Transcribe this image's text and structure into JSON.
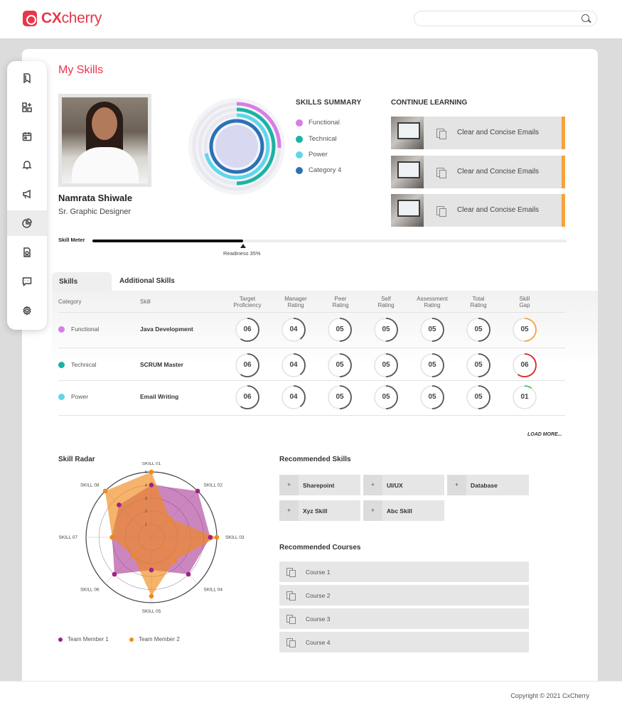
{
  "brand": {
    "name_bold": "CX",
    "name_rest": "cherry"
  },
  "search": {
    "placeholder": ""
  },
  "page": {
    "title": "My Skills"
  },
  "profile": {
    "name": "Namrata Shiwale",
    "role": "Sr. Graphic Designer"
  },
  "skills_summary": {
    "title": "SKILLS SUMMARY",
    "items": [
      {
        "label": "Functional",
        "color": "#d77ee6"
      },
      {
        "label": "Technical",
        "color": "#1bb3a3"
      },
      {
        "label": "Power",
        "color": "#5fd6ea"
      },
      {
        "label": "Category 4",
        "color": "#2a72b5"
      }
    ]
  },
  "continue_learning": {
    "title": "CONTINUE LEARNING",
    "items": [
      {
        "label": "Clear and Concise Emails"
      },
      {
        "label": "Clear and Concise Emails"
      },
      {
        "label": "Clear and Concise Emails"
      }
    ]
  },
  "skill_meter": {
    "label": "Skill Meter",
    "readiness_text": "Readiness 35%",
    "readiness": 0.35
  },
  "tabs": {
    "skills": "Skills",
    "additional": "Additional Skills"
  },
  "table": {
    "headers": {
      "category": "Category",
      "skill": "Skill",
      "target_1": "Target",
      "target_2": "Proficiency",
      "manager_1": "Manager",
      "manager_2": "Rating",
      "peer_1": "Peer",
      "peer_2": "Rating",
      "self_1": "Self",
      "self_2": "Rating",
      "assess_1": "Assessment",
      "assess_2": "Rating",
      "total_1": "Total",
      "total_2": "Rating",
      "gap_1": "Skill",
      "gap_2": "Gap"
    },
    "rows": [
      {
        "category": "Functional",
        "color": "#d77ee6",
        "skill": "Java Development",
        "values": [
          "06",
          "04",
          "05",
          "05",
          "05",
          "05",
          "05"
        ],
        "gap_color": "#f5a23c"
      },
      {
        "category": "Technical",
        "color": "#1bb3a3",
        "skill": "SCRUM Master",
        "values": [
          "06",
          "04",
          "05",
          "05",
          "05",
          "05",
          "06"
        ],
        "gap_color": "#e02424"
      },
      {
        "category": "Power",
        "color": "#5fd6ea",
        "skill": "Email Writing",
        "values": [
          "06",
          "04",
          "05",
          "05",
          "05",
          "05",
          "01"
        ],
        "gap_color": "#3cc25a"
      }
    ],
    "load_more": "LOAD MORE..."
  },
  "radar": {
    "title": "Skill Radar",
    "axes": [
      "SKILL 01",
      "SKILL 02",
      "SKILL 03",
      "SKILL 04",
      "SKILL 05",
      "SKILL 06",
      "SKILL 07",
      "SKILL 08"
    ],
    "scale_labels": [
      "1",
      "2",
      "3",
      "4",
      "5"
    ],
    "series": [
      {
        "name": "Team Member 1",
        "color": "#a0208a",
        "values": [
          4,
          5,
          4.5,
          4,
          2.5,
          4,
          3,
          3.5
        ]
      },
      {
        "name": "Team Member 2",
        "color": "#f08a1c",
        "values": [
          5,
          2,
          5,
          2.5,
          4.5,
          2,
          3,
          5
        ]
      }
    ]
  },
  "recommended_skills": {
    "title": "Recommended Skills",
    "items": [
      {
        "label": "Sharepoint"
      },
      {
        "label": "UI/UX"
      },
      {
        "label": "Database"
      },
      {
        "label": "Xyz Skill"
      },
      {
        "label": "Abc Skill"
      }
    ],
    "plus": "+"
  },
  "recommended_courses": {
    "title": "Recommended Courses",
    "items": [
      {
        "label": "Course 1"
      },
      {
        "label": "Course 2"
      },
      {
        "label": "Course 3"
      },
      {
        "label": "Course 4"
      }
    ]
  },
  "footer": {
    "copyright": "Copyright © 2021 CxCherry"
  },
  "sidebar": {
    "items": [
      {
        "icon": "bookmark-icon"
      },
      {
        "icon": "dashboard-add-icon"
      },
      {
        "icon": "calendar-icon"
      },
      {
        "icon": "bell-icon"
      },
      {
        "icon": "megaphone-icon"
      },
      {
        "icon": "pie-chart-icon"
      },
      {
        "icon": "certificate-icon"
      },
      {
        "icon": "chat-icon"
      },
      {
        "icon": "settings-icon"
      }
    ]
  }
}
